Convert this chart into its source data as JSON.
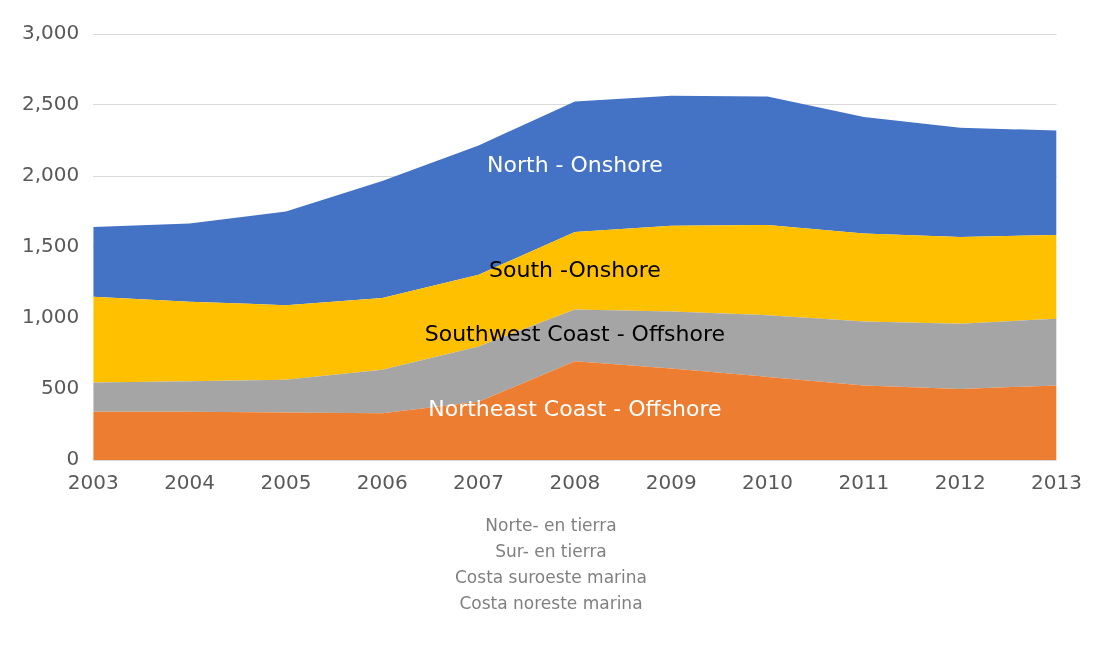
{
  "chart_data": {
    "type": "area",
    "stacked": true,
    "categories": [
      "2003",
      "2004",
      "2005",
      "2006",
      "2007",
      "2008",
      "2009",
      "2010",
      "2011",
      "2012",
      "2013"
    ],
    "series": [
      {
        "name": "Northeast Coast - Offshore",
        "color": "#ed7d31",
        "values": [
          340,
          340,
          335,
          330,
          410,
          695,
          645,
          585,
          525,
          500,
          525
        ]
      },
      {
        "name": "Southwest Coast - Offshore",
        "color": "#a5a5a5",
        "values": [
          205,
          215,
          230,
          305,
          390,
          365,
          400,
          435,
          450,
          460,
          470
        ]
      },
      {
        "name": "South -Onshore",
        "color": "#ffc000",
        "values": [
          605,
          560,
          525,
          505,
          505,
          545,
          605,
          635,
          620,
          610,
          590
        ]
      },
      {
        "name": "North - Onshore",
        "color": "#4472c4",
        "values": [
          490,
          550,
          660,
          825,
          910,
          920,
          915,
          905,
          820,
          770,
          735
        ]
      }
    ],
    "ylim": [
      0,
      3000
    ],
    "yticks": [
      {
        "value": 0,
        "label": "0"
      },
      {
        "value": 500,
        "label": "500"
      },
      {
        "value": 1000,
        "label": "1,000"
      },
      {
        "value": 1500,
        "label": "1,500"
      },
      {
        "value": 2000,
        "label": "2,000"
      },
      {
        "value": 2500,
        "label": "2,500"
      },
      {
        "value": 3000,
        "label": "3,000"
      }
    ],
    "grid": "y",
    "legend": false,
    "annotations": [
      "Norte- en tierra",
      "Sur- en tierra",
      "Costa suroeste marina",
      "Costa noreste marina"
    ]
  }
}
